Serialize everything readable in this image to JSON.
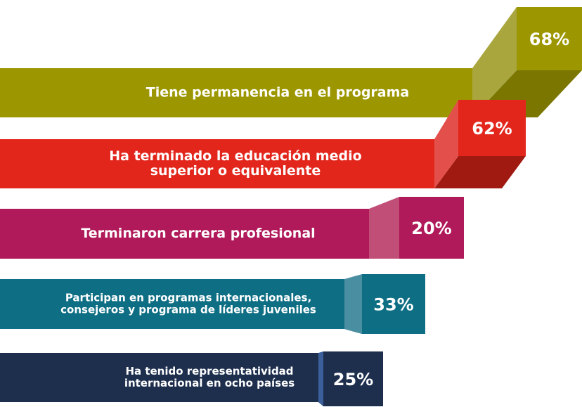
{
  "items": [
    {
      "label": [
        "Tiene permanencia en el programa"
      ],
      "value": "68%"
    },
    {
      "label": [
        "Ha terminado la educación medio",
        "superior o equivalente"
      ],
      "value": "62%"
    },
    {
      "label": [
        "Terminaron carrera profesional"
      ],
      "value": "20%"
    },
    {
      "label": [
        "Participan en programas internacionales,",
        "consejeros y programa de líderes juveniles"
      ],
      "value": "33%"
    },
    {
      "label": [
        "Ha tenido representatividad",
        "internacional en ocho países"
      ],
      "value": "25%"
    }
  ]
}
